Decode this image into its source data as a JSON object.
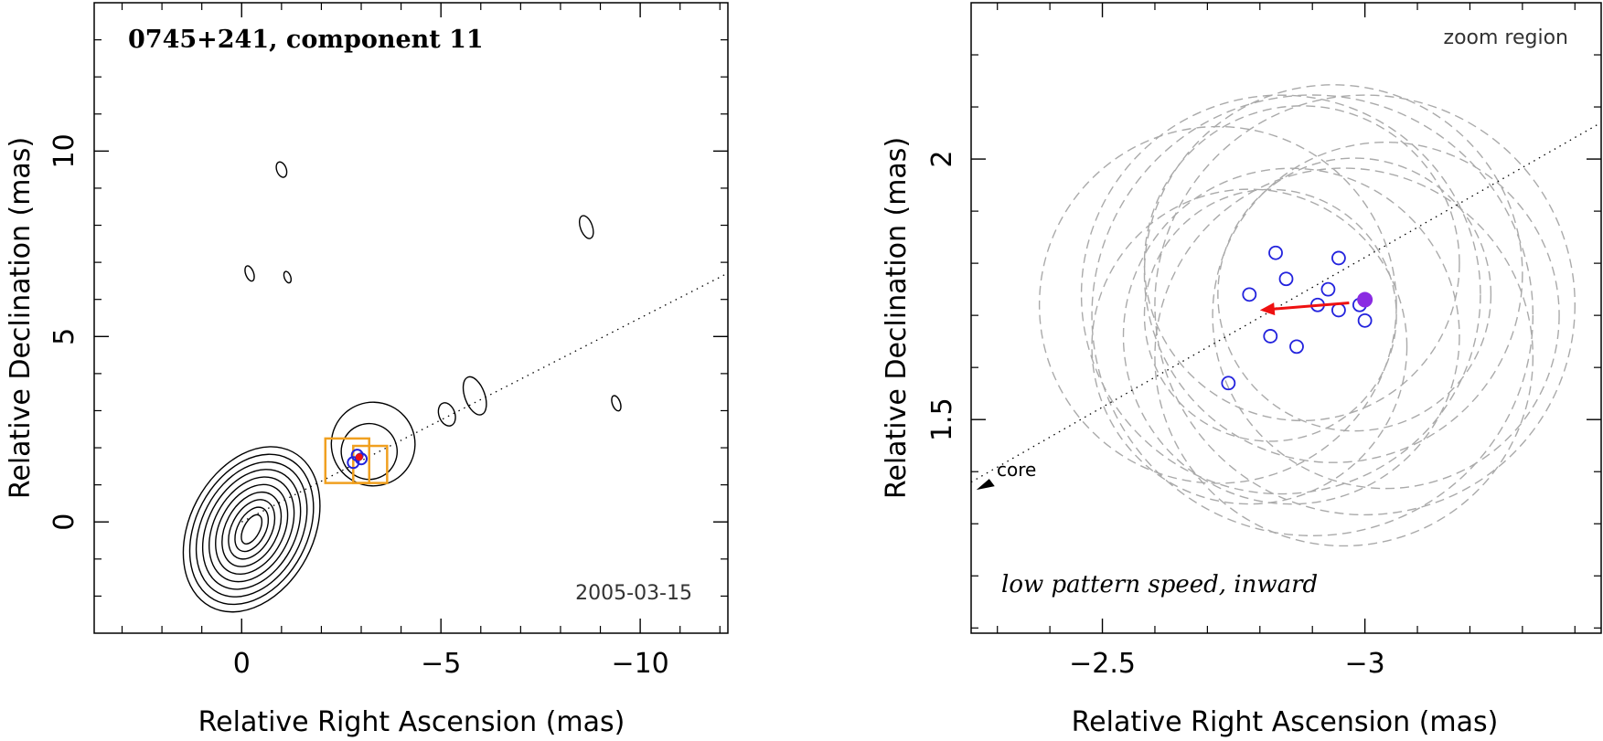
{
  "chart_data": [
    {
      "type": "contour",
      "title": "0745+241, component 11",
      "date": "2005-03-15",
      "xlabel": "Relative Right Ascension (mas)",
      "ylabel": "Relative Declination (mas)",
      "xlim": [
        3.7,
        -12.2
      ],
      "ylim": [
        -3.0,
        14.0
      ],
      "xticks": [
        0,
        -5,
        -10
      ],
      "xtick_labels": [
        "0",
        "−5",
        "−10"
      ],
      "yticks": [
        0,
        5,
        10
      ],
      "ytick_labels": [
        "0",
        "5",
        "10"
      ],
      "jet_axis": {
        "x0": 0,
        "y0": 0,
        "slope": -0.55
      },
      "core": {
        "x": 0,
        "y": 0,
        "rx": [
          0.2,
          0.35,
          0.5,
          0.65,
          0.8,
          0.95,
          1.1,
          1.25,
          1.4,
          1.55
        ],
        "ry": [
          0.4,
          0.6,
          0.8,
          1.0,
          1.2,
          1.4,
          1.6,
          1.8,
          2.0,
          2.2
        ]
      },
      "features": [
        {
          "x": -3.2,
          "y": 1.9,
          "rx": 0.7,
          "ry": 0.7
        },
        {
          "x": -3.3,
          "y": 2.1,
          "rx": 1.05,
          "ry": 1.05
        },
        {
          "x": -5.15,
          "y": 2.9,
          "rx": 0.2,
          "ry": 0.3
        },
        {
          "x": -5.85,
          "y": 3.4,
          "rx": 0.25,
          "ry": 0.5
        },
        {
          "x": -8.65,
          "y": 7.95,
          "rx": 0.15,
          "ry": 0.3
        },
        {
          "x": -9.4,
          "y": 3.2,
          "rx": 0.1,
          "ry": 0.2
        },
        {
          "x": -1.0,
          "y": 9.5,
          "rx": 0.12,
          "ry": 0.2
        },
        {
          "x": -0.2,
          "y": 6.7,
          "rx": 0.1,
          "ry": 0.2
        },
        {
          "x": -1.15,
          "y": 6.6,
          "rx": 0.08,
          "ry": 0.15
        }
      ],
      "zoom_boxes": [
        {
          "x1": -2.1,
          "x2": -3.2,
          "y1": 1.05,
          "y2": 2.25
        },
        {
          "x1": -2.8,
          "x2": -3.65,
          "y1": 1.05,
          "y2": 2.05
        }
      ],
      "component_positions": [
        {
          "x": -2.9,
          "y": 1.8
        },
        {
          "x": -2.8,
          "y": 1.6
        },
        {
          "x": -3.0,
          "y": 1.7
        }
      ]
    },
    {
      "type": "scatter",
      "title": "zoom region",
      "annotation": "low pattern speed, inward",
      "core_label": "core",
      "xlabel": "Relative Right Ascension (mas)",
      "ylabel": "Relative Declination (mas)",
      "xlim": [
        -2.25,
        -3.45
      ],
      "ylim": [
        1.09,
        2.3
      ],
      "xticks": [
        -2.5,
        -3
      ],
      "xtick_labels": [
        "−2.5",
        "−3"
      ],
      "yticks": [
        1.5,
        2
      ],
      "ytick_labels": [
        "1.5",
        "2"
      ],
      "points": [
        {
          "x": -2.78,
          "y": 1.74
        },
        {
          "x": -2.83,
          "y": 1.82
        },
        {
          "x": -2.85,
          "y": 1.77
        },
        {
          "x": -2.82,
          "y": 1.66
        },
        {
          "x": -2.87,
          "y": 1.64
        },
        {
          "x": -2.74,
          "y": 1.57
        },
        {
          "x": -2.91,
          "y": 1.72
        },
        {
          "x": -2.93,
          "y": 1.75
        },
        {
          "x": -2.95,
          "y": 1.81
        },
        {
          "x": -2.95,
          "y": 1.71
        },
        {
          "x": -2.99,
          "y": 1.72
        },
        {
          "x": -3.0,
          "y": 1.69
        }
      ],
      "mean_position": {
        "x": -3.0,
        "y": 1.73
      },
      "velocity_vector": {
        "from_x": -2.97,
        "from_y": 1.724,
        "to_x": -2.8,
        "to_y": 1.71
      },
      "dashed_circles": [
        {
          "x": -2.72,
          "y": 1.72,
          "r": 0.34
        },
        {
          "x": -2.84,
          "y": 1.74,
          "r": 0.38
        },
        {
          "x": -2.9,
          "y": 1.7,
          "r": 0.42
        },
        {
          "x": -2.86,
          "y": 1.66,
          "r": 0.32
        },
        {
          "x": -2.94,
          "y": 1.78,
          "r": 0.36
        },
        {
          "x": -3.0,
          "y": 1.72,
          "r": 0.4
        },
        {
          "x": -2.78,
          "y": 1.64,
          "r": 0.3
        },
        {
          "x": -2.96,
          "y": 1.62,
          "r": 0.36
        },
        {
          "x": -2.88,
          "y": 1.8,
          "r": 0.3
        },
        {
          "x": -3.04,
          "y": 1.7,
          "r": 0.33
        },
        {
          "x": -2.82,
          "y": 1.7,
          "r": 0.24
        },
        {
          "x": -2.98,
          "y": 1.74,
          "r": 0.26
        }
      ],
      "jet_axis": {
        "slope": -0.55
      }
    }
  ],
  "colors": {
    "axis": "#000000",
    "contour": "#000000",
    "component": "#2222dd",
    "mean": "#8a2be2",
    "vector": "#ee1111",
    "box": "#f0a020",
    "circle": "#aaaaaa"
  }
}
